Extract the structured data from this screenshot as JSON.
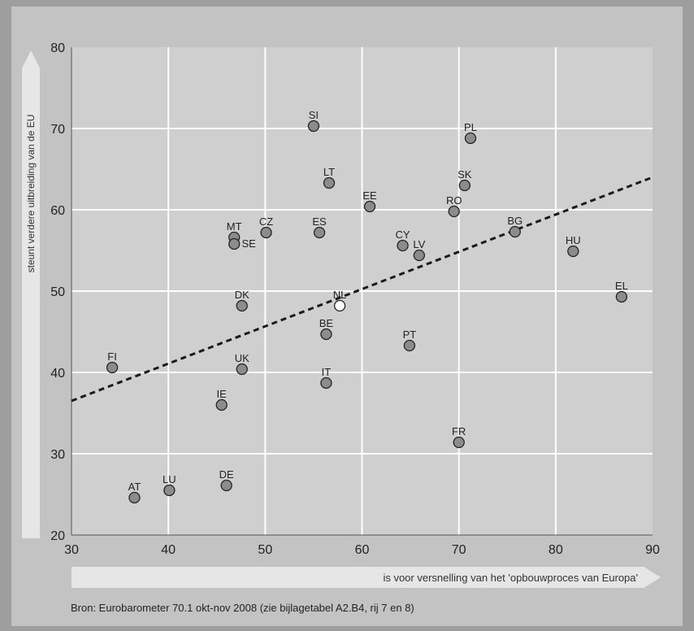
{
  "chart_data": {
    "type": "scatter",
    "title": "",
    "xlabel": "is voor versnelling van het 'opbouwproces van Europa'",
    "ylabel": "steunt verdere uitbreiding van de EU",
    "xlim": [
      30,
      90
    ],
    "ylim": [
      20,
      80
    ],
    "xticks": [
      30,
      40,
      50,
      60,
      70,
      80,
      90
    ],
    "yticks": [
      20,
      30,
      40,
      50,
      60,
      70,
      80
    ],
    "grid": true,
    "trendline": {
      "from": [
        30,
        36.5
      ],
      "to": [
        90,
        64
      ],
      "style": "dashed"
    },
    "points": [
      {
        "label": "FI",
        "x": 34.2,
        "y": 40.6
      },
      {
        "label": "AT",
        "x": 36.5,
        "y": 24.6
      },
      {
        "label": "LU",
        "x": 40.1,
        "y": 25.5
      },
      {
        "label": "IE",
        "x": 45.5,
        "y": 36
      },
      {
        "label": "DE",
        "x": 46,
        "y": 26.1
      },
      {
        "label": "MT",
        "x": 46.8,
        "y": 56.6
      },
      {
        "label": "SE",
        "x": 46.8,
        "y": 55.8
      },
      {
        "label": "DK",
        "x": 47.6,
        "y": 48.2
      },
      {
        "label": "UK",
        "x": 47.6,
        "y": 40.4
      },
      {
        "label": "CZ",
        "x": 50.1,
        "y": 57.2
      },
      {
        "label": "SI",
        "x": 55,
        "y": 70.3
      },
      {
        "label": "ES",
        "x": 55.6,
        "y": 57.2
      },
      {
        "label": "BE",
        "x": 56.3,
        "y": 44.7
      },
      {
        "label": "IT",
        "x": 56.3,
        "y": 38.7
      },
      {
        "label": "LT",
        "x": 56.6,
        "y": 63.3
      },
      {
        "label": "NL",
        "x": 57.7,
        "y": 48.2,
        "highlight": true
      },
      {
        "label": "EE",
        "x": 60.8,
        "y": 60.4
      },
      {
        "label": "CY",
        "x": 64.2,
        "y": 55.6
      },
      {
        "label": "PT",
        "x": 64.9,
        "y": 43.3
      },
      {
        "label": "LV",
        "x": 65.9,
        "y": 54.4
      },
      {
        "label": "RO",
        "x": 69.5,
        "y": 59.8
      },
      {
        "label": "FR",
        "x": 70,
        "y": 31.4
      },
      {
        "label": "SK",
        "x": 70.6,
        "y": 63
      },
      {
        "label": "PL",
        "x": 71.2,
        "y": 68.8
      },
      {
        "label": "BG",
        "x": 75.8,
        "y": 57.3
      },
      {
        "label": "HU",
        "x": 81.8,
        "y": 54.9
      },
      {
        "label": "EL",
        "x": 86.8,
        "y": 49.3
      }
    ],
    "colors": {
      "point": "#8c8c8c",
      "highlight": "#ffffff",
      "plot_bg": "#cfcfcf",
      "grid": "#ffffff",
      "trend": "#1a1a1a"
    }
  },
  "source": "Bron: Eurobarometer 70.1 okt-nov 2008 (zie bijlagetabel A2.B4, rij 7 en 8)"
}
